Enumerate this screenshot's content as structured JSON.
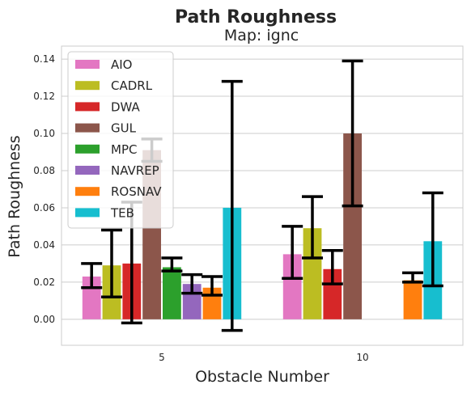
{
  "chart_data": {
    "type": "bar",
    "title": "Path Roughness",
    "subtitle": "Map: ignc",
    "xlabel": "Obstacle Number",
    "ylabel": "Path Roughness",
    "categories": [
      "5",
      "10"
    ],
    "ylim": [
      -0.014,
      0.147
    ],
    "yticks": [
      "0.00",
      "0.02",
      "0.04",
      "0.06",
      "0.08",
      "0.10",
      "0.12",
      "0.14"
    ],
    "grid": true,
    "legend_position": "top-left",
    "series": [
      {
        "name": "AIO",
        "color": "#e377c2",
        "values": [
          0.023,
          0.035
        ],
        "err_low": [
          0.017,
          0.022
        ],
        "err_high": [
          0.03,
          0.05
        ]
      },
      {
        "name": "CADRL",
        "color": "#bcbd22",
        "values": [
          0.029,
          0.049
        ],
        "err_low": [
          0.012,
          0.033
        ],
        "err_high": [
          0.048,
          0.066
        ]
      },
      {
        "name": "DWA",
        "color": "#d62728",
        "values": [
          0.03,
          0.027
        ],
        "err_low": [
          -0.002,
          0.019
        ],
        "err_high": [
          0.063,
          0.037
        ]
      },
      {
        "name": "GUL",
        "color": "#8c564b",
        "values": [
          0.091,
          0.1
        ],
        "err_low": [
          0.085,
          0.061
        ],
        "err_high": [
          0.097,
          0.139
        ]
      },
      {
        "name": "MPC",
        "color": "#2ca02c",
        "values": [
          0.028,
          null
        ],
        "err_low": [
          0.026,
          null
        ],
        "err_high": [
          0.033,
          null
        ]
      },
      {
        "name": "NAVREP",
        "color": "#9467bd",
        "values": [
          0.019,
          null
        ],
        "err_low": [
          0.014,
          null
        ],
        "err_high": [
          0.024,
          null
        ]
      },
      {
        "name": "ROSNAV",
        "color": "#ff7f0e",
        "values": [
          0.017,
          0.021
        ],
        "err_low": [
          0.013,
          0.02
        ],
        "err_high": [
          0.023,
          0.025
        ]
      },
      {
        "name": "TEB",
        "color": "#17becf",
        "values": [
          0.06,
          0.042
        ],
        "err_low": [
          -0.006,
          0.018
        ],
        "err_high": [
          0.128,
          0.068
        ]
      }
    ]
  }
}
